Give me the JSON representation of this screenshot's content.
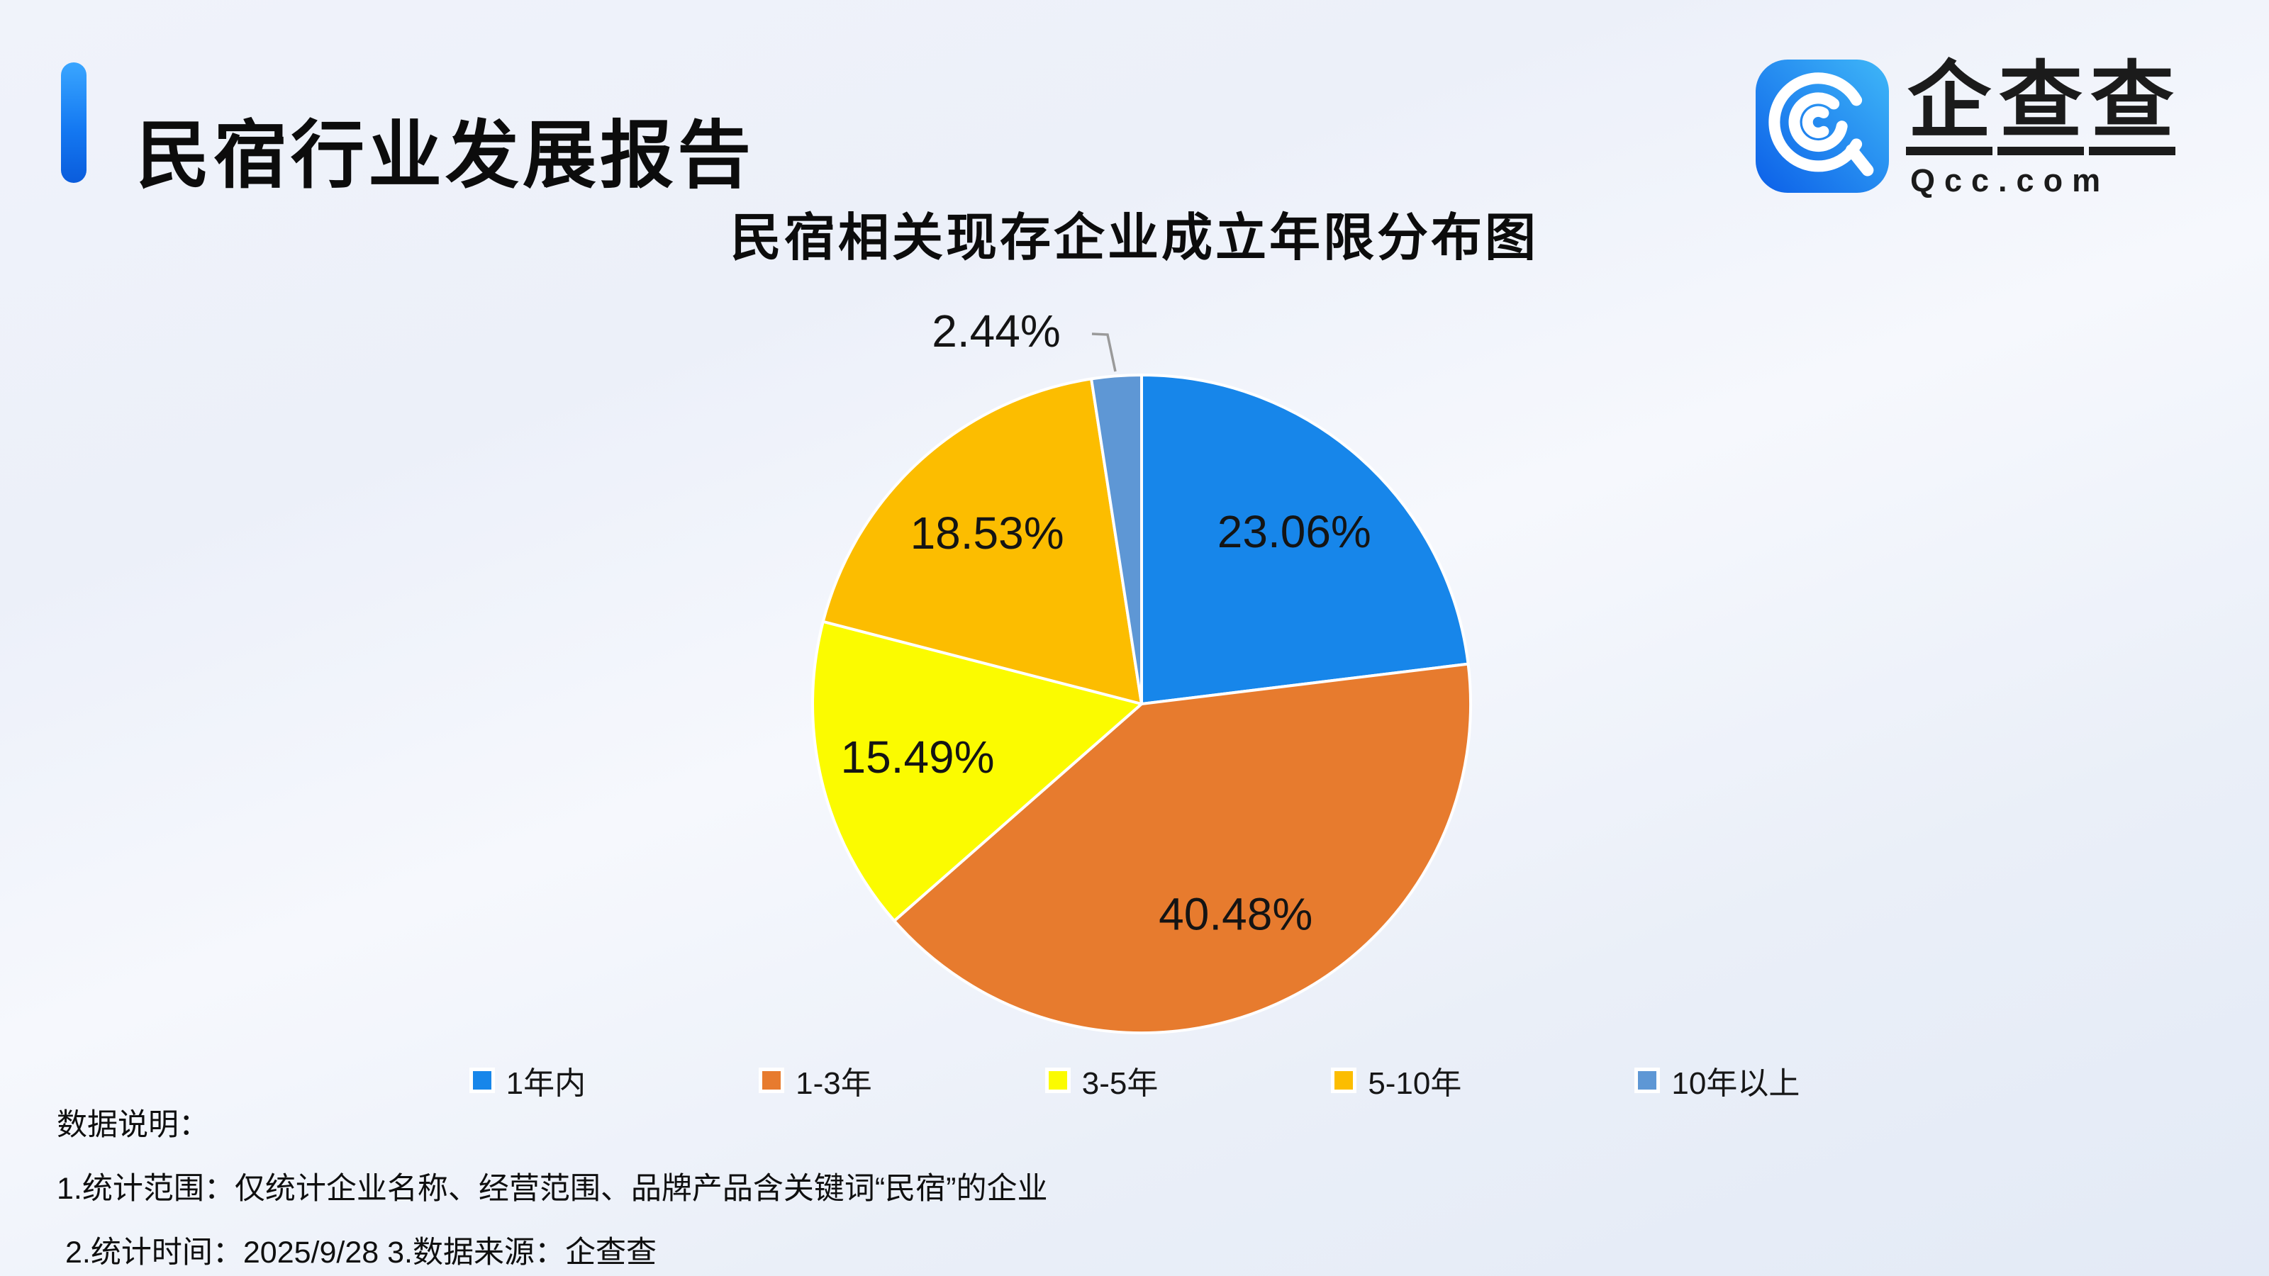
{
  "header": {
    "title": "民宿行业发展报告"
  },
  "logo": {
    "brand_chars": [
      "企",
      "查",
      "查"
    ],
    "domain": "Qcc.com",
    "icon": "qcc-magnifier-icon",
    "icon_gradient_start": "#0b5fe8",
    "icon_gradient_end": "#3fb7f8"
  },
  "chart": {
    "title": "民宿相关现存企业成立年限分布图"
  },
  "chart_data": {
    "type": "pie",
    "title": "民宿相关现存企业成立年限分布图",
    "categories": [
      "1年内",
      "1-3年",
      "3-5年",
      "5-10年",
      "10年以上"
    ],
    "values": [
      23.06,
      40.48,
      15.49,
      18.53,
      2.44
    ],
    "labels": [
      "23.06%",
      "40.48%",
      "15.49%",
      "18.53%",
      "2.44%"
    ],
    "colors": [
      "#1786EA",
      "#E77B2E",
      "#FBFB00",
      "#FCBD00",
      "#5E97D5"
    ],
    "labels_inside": [
      true,
      true,
      true,
      true,
      false
    ],
    "start_angle": "top",
    "direction": "clockwise",
    "legend_position": "bottom",
    "slice_border_color": "#ffffff",
    "leader_line_color": "#9a9a9a"
  },
  "legend": {
    "items": [
      {
        "label": "1年内",
        "color": "#1786EA"
      },
      {
        "label": "1-3年",
        "color": "#E77B2E"
      },
      {
        "label": "3-5年",
        "color": "#FBFB00"
      },
      {
        "label": "5-10年",
        "color": "#FCBD00"
      },
      {
        "label": "10年以上",
        "color": "#5E97D5"
      }
    ]
  },
  "notes": {
    "heading": "数据说明：",
    "line1": "1.统计范围：仅统计企业名称、经营范围、品牌产品含关键词“民宿”的企业",
    "line2": "2.统计时间：2025/9/28  3.数据来源：企查查"
  },
  "colors": {
    "accent_bar": "#1479F2",
    "background": "#EEF2FA",
    "title_text": "#0C0C0C"
  }
}
